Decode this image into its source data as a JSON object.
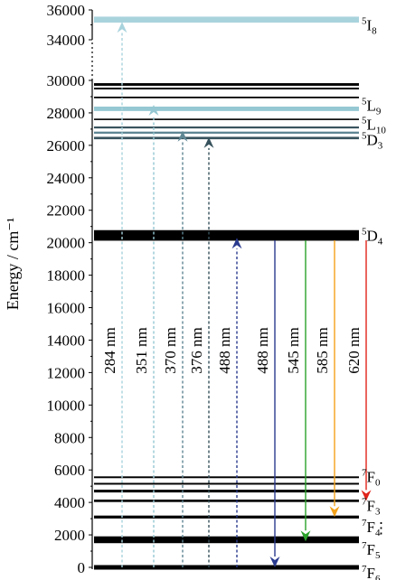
{
  "axis": {
    "label": "Energy / cm⁻¹",
    "ticks": [
      {
        "value": 0,
        "label": "0"
      },
      {
        "value": 2000,
        "label": "2000"
      },
      {
        "value": 4000,
        "label": "4000"
      },
      {
        "value": 6000,
        "label": "6000"
      },
      {
        "value": 8000,
        "label": "8000"
      },
      {
        "value": 10000,
        "label": "10000"
      },
      {
        "value": 12000,
        "label": "12000"
      },
      {
        "value": 14000,
        "label": "14000"
      },
      {
        "value": 16000,
        "label": "16000"
      },
      {
        "value": 18000,
        "label": "18000"
      },
      {
        "value": 20000,
        "label": "20000"
      },
      {
        "value": 22000,
        "label": "22000"
      },
      {
        "value": 24000,
        "label": "24000"
      },
      {
        "value": 26000,
        "label": "26000"
      },
      {
        "value": 28000,
        "label": "28000"
      },
      {
        "value": 30000,
        "label": "30000"
      },
      {
        "value": 34000,
        "label": "34000"
      },
      {
        "value": 36000,
        "label": "36000"
      }
    ]
  },
  "levels": [
    {
      "energy": 0,
      "band": 280,
      "color": "#000000"
    },
    {
      "energy": 1700,
      "band": 420,
      "color": "#000000"
    },
    {
      "energy": 3100,
      "band": 180,
      "color": "#000000"
    },
    {
      "energy": 4100,
      "band": 150,
      "color": "#000000"
    },
    {
      "energy": 4700,
      "band": 170,
      "color": "#000000"
    },
    {
      "energy": 5150,
      "band": 110,
      "color": "#000000"
    },
    {
      "energy": 5550,
      "band": 110,
      "color": "#000000"
    },
    {
      "energy": 20450,
      "band": 650,
      "color": "#000000"
    },
    {
      "energy": 26450,
      "band": 150,
      "color": "#37525c"
    },
    {
      "energy": 26780,
      "band": 130,
      "color": "#5f8693"
    },
    {
      "energy": 27100,
      "band": 120,
      "color": "#37525c"
    },
    {
      "energy": 27600,
      "band": 90,
      "color": "#000000"
    },
    {
      "energy": 28250,
      "band": 270,
      "color": "#95c8d2"
    },
    {
      "energy": 28950,
      "band": 100,
      "color": "#000000"
    },
    {
      "energy": 29500,
      "band": 110,
      "color": "#000000"
    },
    {
      "energy": 29750,
      "band": 160,
      "color": "#000000"
    },
    {
      "energy": 35350,
      "band": 400,
      "color": "#a8d3dd"
    }
  ],
  "state_labels": [
    {
      "id": "5I8",
      "sup": "5",
      "main": "I",
      "sub": "8",
      "energy": 34950
    },
    {
      "id": "5L9",
      "sup": "5",
      "main": "L",
      "sub": "9",
      "energy": 28400
    },
    {
      "id": "5L10",
      "sup": "5",
      "main": "L",
      "sub": "10",
      "energy": 27250
    },
    {
      "id": "5D3",
      "sup": "5",
      "main": "D",
      "sub": "3",
      "energy": 26300
    },
    {
      "id": "5D4",
      "sup": "5",
      "main": "D",
      "sub": "4",
      "energy": 20400
    },
    {
      "id": "7F0",
      "sup": "7",
      "main": "F",
      "sub": "0",
      "energy": 5550
    },
    {
      "id": "7F3",
      "sup": "7",
      "main": "F",
      "sub": "3",
      "energy": 3750
    },
    {
      "id": "7F4",
      "sup": "7",
      "main": "F",
      "sub": "4",
      "energy": 2450
    },
    {
      "id": "7F5",
      "sup": "7",
      "main": "F",
      "sub": "5",
      "energy": 1050
    },
    {
      "id": "7F6",
      "sup": "7",
      "main": "F",
      "sub": "6",
      "energy": -400
    }
  ],
  "dots": "⋮",
  "transitions": [
    {
      "label": "284 nm",
      "kind": "excitation",
      "from": 0,
      "to": 35200,
      "color": "#a8d3dd"
    },
    {
      "label": "351 nm",
      "kind": "excitation",
      "from": 0,
      "to": 28500,
      "color": "#95c8d2"
    },
    {
      "label": "370 nm",
      "kind": "excitation",
      "from": 0,
      "to": 26900,
      "color": "#5f8693"
    },
    {
      "label": "376 nm",
      "kind": "excitation",
      "from": 0,
      "to": 26500,
      "color": "#37525c"
    },
    {
      "label": "488 nm",
      "kind": "excitation",
      "from": 0,
      "to": 20300,
      "color": "#2a3b8f"
    },
    {
      "label": "488 nm",
      "kind": "emission",
      "from": 20150,
      "to": 0,
      "color": "#2a3b8f"
    },
    {
      "label": "545 nm",
      "kind": "emission",
      "from": 20150,
      "to": 1600,
      "color": "#2aa12a"
    },
    {
      "label": "585 nm",
      "kind": "emission",
      "from": 20150,
      "to": 3100,
      "color": "#f4a21b"
    },
    {
      "label": "620 nm",
      "kind": "emission",
      "from": 20150,
      "to": 4100,
      "color": "#e0241b"
    }
  ]
}
